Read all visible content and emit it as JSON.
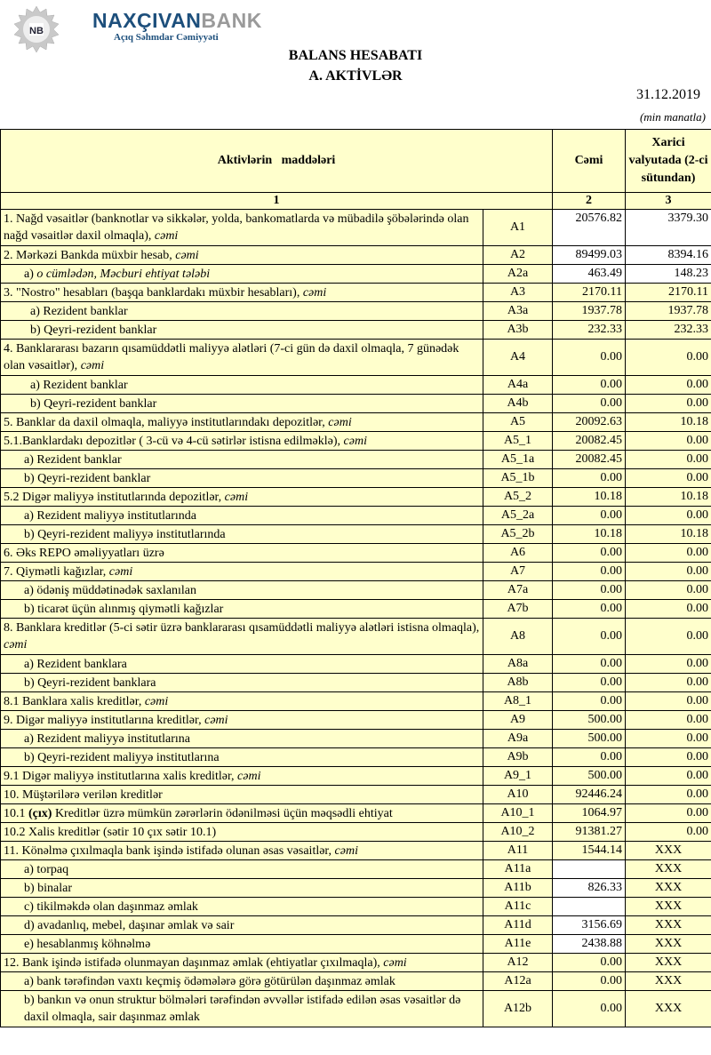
{
  "logo": {
    "name_part1": "NAXÇIVAN",
    "name_part2": "BANK",
    "subtitle": "Açıq Səhmdar Cəmiyyəti",
    "monogram": "NB"
  },
  "header": {
    "title": "BALANS HESABATI",
    "subtitle": "A. AKTİVLƏR",
    "date": "31.12.2019",
    "unit": "(min manatla)"
  },
  "colors": {
    "cell_bg": "#ffffcc",
    "white": "#ffffff",
    "brand_blue": "#1d4f7c",
    "brand_gray": "#9a9a9a"
  },
  "table": {
    "columns": {
      "items": "Aktivlərin   maddələri",
      "total": "Cəmi",
      "foreign": "Xarici valyutada (2-ci sütundan)"
    },
    "column_numbers": [
      "1",
      "2",
      "3"
    ],
    "rows": [
      {
        "text": "1. Nağd vəsaitlər (banknotlar və sikkələr, yolda, bankomatlarda və mübadilə şöbələrində olan nağd vəsaitlər daxil olmaqla), ",
        "em": "cəmi",
        "code": "A1",
        "total": "20576.82",
        "foreign": "3379.30",
        "tall": true,
        "white2": true,
        "white3": true
      },
      {
        "text": "2. Mərkəzi Bankda müxbir hesab, ",
        "em": "cəmi",
        "code": "A2",
        "total": "89499.03",
        "foreign": "8394.16",
        "white2": true,
        "white3": true
      },
      {
        "text": "a) ",
        "em": "o cümlədən, Məcburi ehtiyat tələbi",
        "code": "A2a",
        "total": "463.49",
        "foreign": "148.23",
        "indent": 1,
        "white2": true,
        "white3": true
      },
      {
        "text": "3. \"Nostro\" hesabları (başqa banklardakı müxbir hesabları), ",
        "em": "cəmi",
        "code": "A3",
        "total": "2170.11",
        "foreign": "2170.11"
      },
      {
        "text": "a) Rezident banklar",
        "code": "A3a",
        "total": "1937.78",
        "foreign": "1937.78",
        "indent": 2
      },
      {
        "text": "b) Qeyri-rezident banklar",
        "code": "A3b",
        "total": "232.33",
        "foreign": "232.33",
        "indent": 2
      },
      {
        "text": "4. Banklararası bazarın qısamüddətli maliyyə alətləri (7-ci gün də daxil olmaqla, 7 günədək olan vəsaitlər), ",
        "em": "cəmi",
        "code": "A4",
        "total": "0.00",
        "foreign": "0.00",
        "tall": true
      },
      {
        "text": "a) Rezident banklar",
        "code": "A4a",
        "total": "0.00",
        "foreign": "0.00",
        "indent": 2
      },
      {
        "text": "b) Qeyri-rezident banklar",
        "code": "A4b",
        "total": "0.00",
        "foreign": "0.00",
        "indent": 2
      },
      {
        "text": "5. Banklar da daxil olmaqla, maliyyə institutlarındakı depozitlər, ",
        "em": "cəmi",
        "code": "A5",
        "total": "20092.63",
        "foreign": "10.18"
      },
      {
        "text": "5.1.Banklardakı depozitlər ( 3-cü və 4-cü sətirlər istisna edilməklə), ",
        "em": "cəmi",
        "code": "A5_1",
        "total": "20082.45",
        "foreign": "0.00"
      },
      {
        "text": "a) Rezident banklar",
        "code": "A5_1a",
        "total": "20082.45",
        "foreign": "0.00",
        "indent": 1
      },
      {
        "text": "b) Qeyri-rezident banklar",
        "code": "A5_1b",
        "total": "0.00",
        "foreign": "0.00",
        "indent": 1
      },
      {
        "text": "5.2 Digər maliyyə institutlarında depozitlər, ",
        "em": "cəmi",
        "code": "A5_2",
        "total": "10.18",
        "foreign": "10.18"
      },
      {
        "text": "a) Rezident maliyyə institutlarında",
        "code": "A5_2a",
        "total": "0.00",
        "foreign": "0.00",
        "indent": 1
      },
      {
        "text": "b) Qeyri-rezident maliyyə institutlarında",
        "code": "A5_2b",
        "total": "10.18",
        "foreign": "10.18",
        "indent": 1
      },
      {
        "text": "6. Əks REPO əməliyyatları üzrə",
        "code": "A6",
        "total": "0.00",
        "foreign": "0.00"
      },
      {
        "text": "7. Qiymətli kağızlar, ",
        "em": "cəmi",
        "code": "A7",
        "total": "0.00",
        "foreign": "0.00"
      },
      {
        "text": "a) ödəniş müddətinədək saxlanılan",
        "code": "A7a",
        "total": "0.00",
        "foreign": "0.00",
        "indent": 1
      },
      {
        "text": "b) ticarət üçün alınmış qiymətli kağızlar",
        "code": "A7b",
        "total": "0.00",
        "foreign": "0.00",
        "indent": 1
      },
      {
        "text": "8. Banklara kreditlər (5-ci sətir üzrə banklararası qısamüddətli maliyyə alətləri istisna olmaqla), ",
        "em": "cəmi",
        "code": "A8",
        "total": "0.00",
        "foreign": "0.00",
        "tall": true
      },
      {
        "text": "a) Rezident banklara",
        "code": "A8a",
        "total": "0.00",
        "foreign": "0.00",
        "indent": 1
      },
      {
        "text": "b) Qeyri-rezident banklara",
        "code": "A8b",
        "total": "0.00",
        "foreign": "0.00",
        "indent": 1
      },
      {
        "text": "8.1 Banklara xalis kreditlər, ",
        "em": "cəmi",
        "code": "A8_1",
        "total": "0.00",
        "foreign": "0.00"
      },
      {
        "text": "9. Digər maliyyə institutlarına kreditlər, ",
        "em": "cəmi",
        "code": "A9",
        "total": "500.00",
        "foreign": "0.00"
      },
      {
        "text": "a) Rezident maliyyə institutlarına",
        "code": "A9a",
        "total": "500.00",
        "foreign": "0.00",
        "indent": 1
      },
      {
        "text": "b) Qeyri-rezident maliyyə institutlarına",
        "code": "A9b",
        "total": "0.00",
        "foreign": "0.00",
        "indent": 1
      },
      {
        "text": "9.1 Digər maliyyə institutlarına xalis kreditlər, ",
        "em": "cəmi",
        "code": "A9_1",
        "total": "500.00",
        "foreign": "0.00"
      },
      {
        "text": "10. Müştərilərə verilən kreditlər",
        "code": "A10",
        "total": "92446.24",
        "foreign": "0.00"
      },
      {
        "pre": "10.1 ",
        "bold": "(çıx)",
        "text": " Kreditlər üzrə mümkün zərərlərin ödənilməsi üçün məqsədli ehtiyat",
        "code": "A10_1",
        "total": "1064.97",
        "foreign": "0.00"
      },
      {
        "text": "10.2 Xalis kreditlər (sətir 10 çıx sətir 10.1)",
        "code": "A10_2",
        "total": "91381.27",
        "foreign": "0.00"
      },
      {
        "text": "11. Könəlmə çıxılmaqla bank işində istifadə olunan əsas vəsaitlər, ",
        "em": "cəmi",
        "code": "A11",
        "total": "1544.14",
        "foreign": "XXX"
      },
      {
        "text": "a) torpaq",
        "code": "A11a",
        "total": "",
        "foreign": "XXX",
        "indent": 1,
        "white2": true
      },
      {
        "text": "b) binalar",
        "code": "A11b",
        "total": "826.33",
        "foreign": "XXX",
        "indent": 1,
        "white2": true
      },
      {
        "text": "c) tikilməkdə olan daşınmaz əmlak",
        "code": "A11c",
        "total": "",
        "foreign": "XXX",
        "indent": 1,
        "white2": true
      },
      {
        "text": "d) avadanlıq, mebel, daşınar əmlak və sair",
        "code": "A11d",
        "total": "3156.69",
        "foreign": "XXX",
        "indent": 1,
        "white2": true
      },
      {
        "text": "e) hesablanmış köhnəlmə",
        "code": "A11e",
        "total": "2438.88",
        "foreign": "XXX",
        "indent": 1,
        "white2": true
      },
      {
        "text": "12. Bank işində istifadə olunmayan daşınmaz əmlak (ehtiyatlar çıxılmaqla), ",
        "em": "cəmi",
        "code": "A12",
        "total": "0.00",
        "foreign": "XXX"
      },
      {
        "text": "a) bank tərəfindən vaxtı keçmiş ödəmələrə görə götürülən daşınmaz əmlak",
        "code": "A12a",
        "total": "0.00",
        "foreign": "XXX",
        "indent": 1
      },
      {
        "text": "b) bankın və onun struktur bölmələri tərəfindən əvvəllər istifadə edilən əsas vəsaitlər də daxil olmaqla, sair daşınmaz əmlak",
        "code": "A12b",
        "total": "0.00",
        "foreign": "XXX",
        "indent": 1,
        "tall": true
      }
    ]
  }
}
